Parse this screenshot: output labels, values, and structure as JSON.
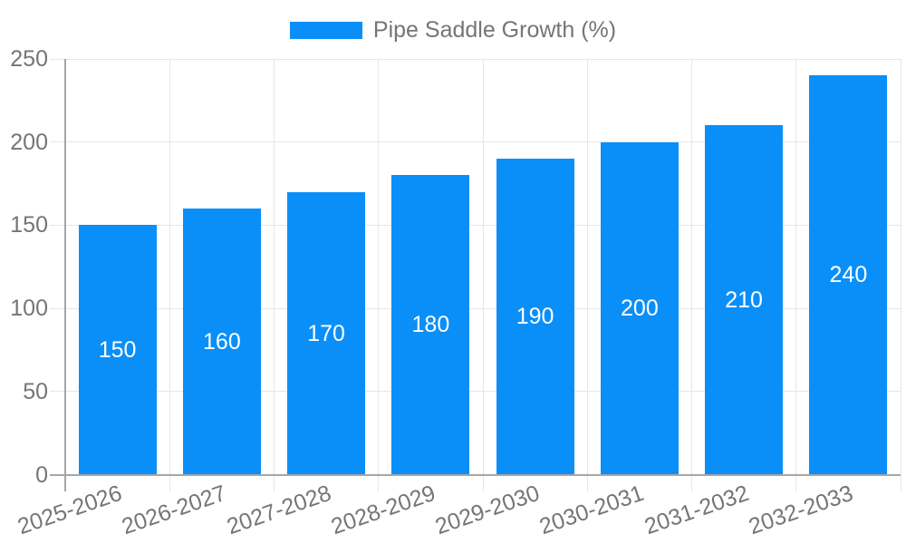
{
  "legend": {
    "label": "Pipe Saddle Growth (%)"
  },
  "chart_data": {
    "type": "bar",
    "title": "Pipe Saddle Growth (%)",
    "categories": [
      "2025-2026",
      "2026-2027",
      "2027-2028",
      "2028-2029",
      "2029-2030",
      "2030-2031",
      "2031-2032",
      "2032-2033"
    ],
    "values": [
      150,
      160,
      170,
      180,
      190,
      200,
      210,
      240
    ],
    "ylim": [
      0,
      250
    ],
    "yticks": [
      0,
      50,
      100,
      150,
      200,
      250
    ],
    "grid": true,
    "legend_position": "top",
    "bar_labels_inside": true,
    "x_label_rotation_deg": -19,
    "colors": {
      "bar": "#0a8ff9",
      "grid": "#e6e6e6",
      "axis": "#a6a6a6",
      "label": "#757575",
      "value_label": "#ffffff",
      "background": "#ffffff"
    }
  }
}
